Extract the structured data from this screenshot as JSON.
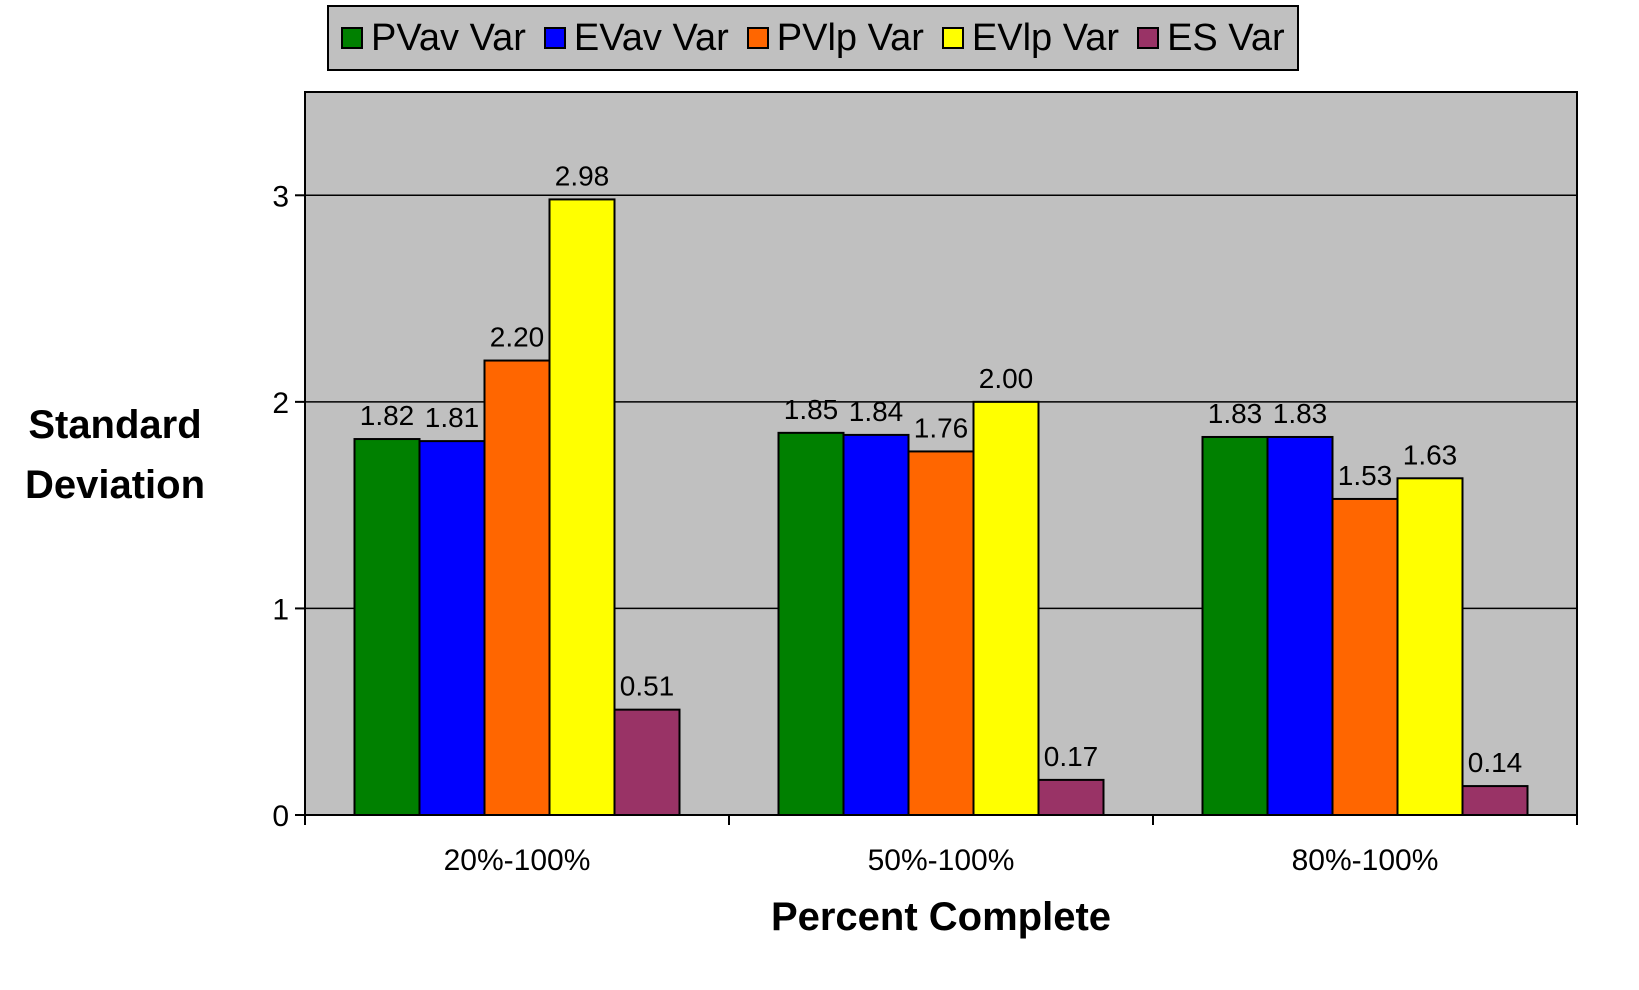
{
  "chart_data": {
    "type": "bar",
    "y_label": "Standard Deviation",
    "x_label": "Percent Complete",
    "categories": [
      "20%-100%",
      "50%-100%",
      "80%-100%"
    ],
    "series": [
      {
        "name": "PVav Var",
        "color": "#008000",
        "values": [
          1.82,
          1.85,
          1.83
        ],
        "value_labels": [
          "1.82",
          "1.85",
          "1.83"
        ]
      },
      {
        "name": "EVav Var",
        "color": "#0000ff",
        "values": [
          1.81,
          1.84,
          1.83
        ],
        "value_labels": [
          "1.81",
          "1.84",
          "1.83"
        ]
      },
      {
        "name": "PVlp Var",
        "color": "#ff6600",
        "values": [
          2.2,
          1.76,
          1.53
        ],
        "value_labels": [
          "2.20",
          "1.76",
          "1.53"
        ]
      },
      {
        "name": "EVlp Var",
        "color": "#ffff00",
        "values": [
          2.98,
          2.0,
          1.63
        ],
        "value_labels": [
          "2.98",
          "2.00",
          "1.63"
        ]
      },
      {
        "name": "ES Var",
        "color": "#993366",
        "values": [
          0.51,
          0.17,
          0.14
        ],
        "value_labels": [
          "0.51",
          "0.17",
          "0.14"
        ]
      }
    ],
    "ylim": [
      0,
      3.5
    ],
    "yticks": [
      0,
      1,
      2,
      3
    ],
    "grid": true,
    "plot_background": "#c0c0c0",
    "legend": "top"
  }
}
